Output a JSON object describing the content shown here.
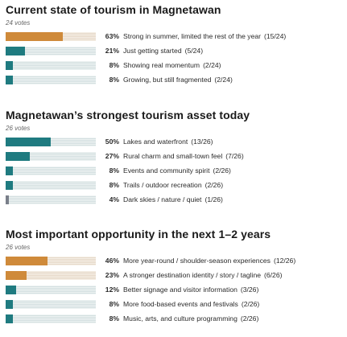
{
  "colors": {
    "orange": "#cf8a3a",
    "teal": "#1f7b80",
    "gray": "#7a7f8a"
  },
  "polls": [
    {
      "title": "Current state of tourism in Magnetawan",
      "votes": "24 votes",
      "options": [
        {
          "pct": "63%",
          "label": "Strong in summer, limited the rest of the year",
          "count": "(15/24)",
          "value": 63,
          "color": "orange"
        },
        {
          "pct": "21%",
          "label": "Just getting started",
          "count": "(5/24)",
          "value": 21,
          "color": "teal"
        },
        {
          "pct": "8%",
          "label": "Showing real momentum",
          "count": "(2/24)",
          "value": 8,
          "color": "teal"
        },
        {
          "pct": "8%",
          "label": "Growing, but still fragmented",
          "count": "(2/24)",
          "value": 8,
          "color": "teal"
        }
      ]
    },
    {
      "title": "Magnetawan’s strongest tourism asset today",
      "votes": "26 votes",
      "options": [
        {
          "pct": "50%",
          "label": "Lakes and waterfront",
          "count": "(13/26)",
          "value": 50,
          "color": "teal"
        },
        {
          "pct": "27%",
          "label": "Rural charm and small-town feel",
          "count": "(7/26)",
          "value": 27,
          "color": "teal"
        },
        {
          "pct": "8%",
          "label": "Events and community spirit",
          "count": "(2/26)",
          "value": 8,
          "color": "teal"
        },
        {
          "pct": "8%",
          "label": "Trails / outdoor recreation",
          "count": "(2/26)",
          "value": 8,
          "color": "teal"
        },
        {
          "pct": "4%",
          "label": "Dark skies / nature / quiet",
          "count": "(1/26)",
          "value": 4,
          "color": "gray"
        }
      ]
    },
    {
      "title": "Most important opportunity in the next 1–2 years",
      "votes": "26 votes",
      "options": [
        {
          "pct": "46%",
          "label": "More year-round / shoulder-season experiences",
          "count": "(12/26)",
          "value": 46,
          "color": "orange"
        },
        {
          "pct": "23%",
          "label": "A stronger destination identity / story / tagline",
          "count": "(6/26)",
          "value": 23,
          "color": "orange"
        },
        {
          "pct": "12%",
          "label": "Better signage and visitor information",
          "count": "(3/26)",
          "value": 12,
          "color": "teal"
        },
        {
          "pct": "8%",
          "label": "More food-based events and festivals",
          "count": "(2/26)",
          "value": 8,
          "color": "teal"
        },
        {
          "pct": "8%",
          "label": "Music, arts, and culture programming",
          "count": "(2/26)",
          "value": 8,
          "color": "teal"
        }
      ]
    }
  ],
  "chart_data": [
    {
      "type": "bar",
      "title": "Current state of tourism in Magnetawan",
      "subtitle": "24 votes",
      "categories": [
        "Strong in summer, limited the rest of the year",
        "Just getting started",
        "Showing real momentum",
        "Growing, but still fragmented"
      ],
      "values": [
        63,
        21,
        8,
        8
      ],
      "counts": [
        "15/24",
        "5/24",
        "2/24",
        "2/24"
      ],
      "ylim": [
        0,
        100
      ]
    },
    {
      "type": "bar",
      "title": "Magnetawan’s strongest tourism asset today",
      "subtitle": "26 votes",
      "categories": [
        "Lakes and waterfront",
        "Rural charm and small-town feel",
        "Events and community spirit",
        "Trails / outdoor recreation",
        "Dark skies / nature / quiet"
      ],
      "values": [
        50,
        27,
        8,
        8,
        4
      ],
      "counts": [
        "13/26",
        "7/26",
        "2/26",
        "2/26",
        "1/26"
      ],
      "ylim": [
        0,
        100
      ]
    },
    {
      "type": "bar",
      "title": "Most important opportunity in the next 1–2 years",
      "subtitle": "26 votes",
      "categories": [
        "More year-round / shoulder-season experiences",
        "A stronger destination identity / story / tagline",
        "Better signage and visitor information",
        "More food-based events and festivals",
        "Music, arts, and culture programming"
      ],
      "values": [
        46,
        23,
        12,
        8,
        8
      ],
      "counts": [
        "12/26",
        "6/26",
        "3/26",
        "2/26",
        "2/26"
      ],
      "ylim": [
        0,
        100
      ]
    }
  ]
}
